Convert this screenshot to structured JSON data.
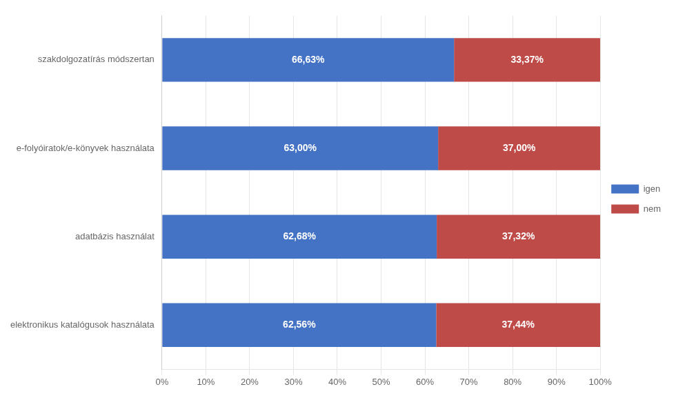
{
  "chart_data": {
    "type": "bar",
    "orientation": "horizontal",
    "stacked": true,
    "categories": [
      "elektronikus katalógusok használata",
      "adatbázis használat",
      "e-folyóiratok/e-könyvek használata",
      "szakdolgozatírás módszertan"
    ],
    "series": [
      {
        "name": "igen",
        "color": "#4472C4",
        "values": [
          62.56,
          62.68,
          63.0,
          66.63
        ],
        "value_labels": [
          "62,56%",
          "62,68%",
          "63,00%",
          "66,63%"
        ]
      },
      {
        "name": "nem",
        "color": "#BE4B48",
        "values": [
          37.44,
          37.32,
          37.0,
          33.37
        ],
        "value_labels": [
          "37,44%",
          "37,32%",
          "37,00%",
          "33,37%"
        ]
      }
    ],
    "xlim": [
      0,
      100
    ],
    "xticks": [
      {
        "value": 0,
        "label": "0%"
      },
      {
        "value": 10,
        "label": "10%"
      },
      {
        "value": 20,
        "label": "20%"
      },
      {
        "value": 30,
        "label": "30%"
      },
      {
        "value": 40,
        "label": "40%"
      },
      {
        "value": 50,
        "label": "50%"
      },
      {
        "value": 60,
        "label": "60%"
      },
      {
        "value": 70,
        "label": "70%"
      },
      {
        "value": 80,
        "label": "80%"
      },
      {
        "value": 90,
        "label": "90%"
      },
      {
        "value": 100,
        "label": "100%"
      }
    ],
    "grid": "x",
    "legend": "right",
    "data_labels": true
  }
}
